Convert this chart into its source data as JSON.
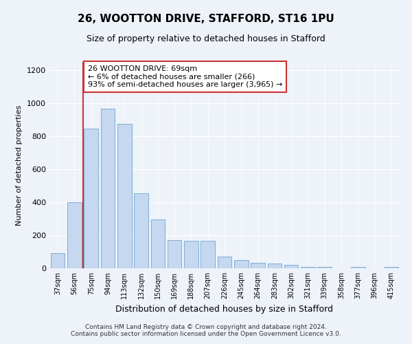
{
  "title": "26, WOOTTON DRIVE, STAFFORD, ST16 1PU",
  "subtitle": "Size of property relative to detached houses in Stafford",
  "xlabel": "Distribution of detached houses by size in Stafford",
  "ylabel": "Number of detached properties",
  "categories": [
    "37sqm",
    "56sqm",
    "75sqm",
    "94sqm",
    "113sqm",
    "132sqm",
    "150sqm",
    "169sqm",
    "188sqm",
    "207sqm",
    "226sqm",
    "245sqm",
    "264sqm",
    "283sqm",
    "302sqm",
    "321sqm",
    "339sqm",
    "358sqm",
    "377sqm",
    "396sqm",
    "415sqm"
  ],
  "values": [
    90,
    400,
    845,
    965,
    875,
    455,
    295,
    170,
    165,
    165,
    70,
    50,
    35,
    28,
    20,
    10,
    10,
    0,
    8,
    0,
    8
  ],
  "bar_color": "#c5d8ef",
  "bar_edge_color": "#7aaed6",
  "highlight_color": "#cc3333",
  "annotation_text": "26 WOOTTON DRIVE: 69sqm\n← 6% of detached houses are smaller (266)\n93% of semi-detached houses are larger (3,965) →",
  "annotation_box_color": "#ffffff",
  "annotation_box_edge": "#cc3333",
  "ylim": [
    0,
    1250
  ],
  "yticks": [
    0,
    200,
    400,
    600,
    800,
    1000,
    1200
  ],
  "footer_line1": "Contains HM Land Registry data © Crown copyright and database right 2024.",
  "footer_line2": "Contains public sector information licensed under the Open Government Licence v3.0.",
  "bg_color": "#eef2f9",
  "plot_bg_color": "#eef2f9",
  "title_fontsize": 11,
  "subtitle_fontsize": 9,
  "ylabel_fontsize": 8,
  "xlabel_fontsize": 9,
  "tick_fontsize": 7,
  "annotation_fontsize": 8,
  "red_line_x": 1.5
}
